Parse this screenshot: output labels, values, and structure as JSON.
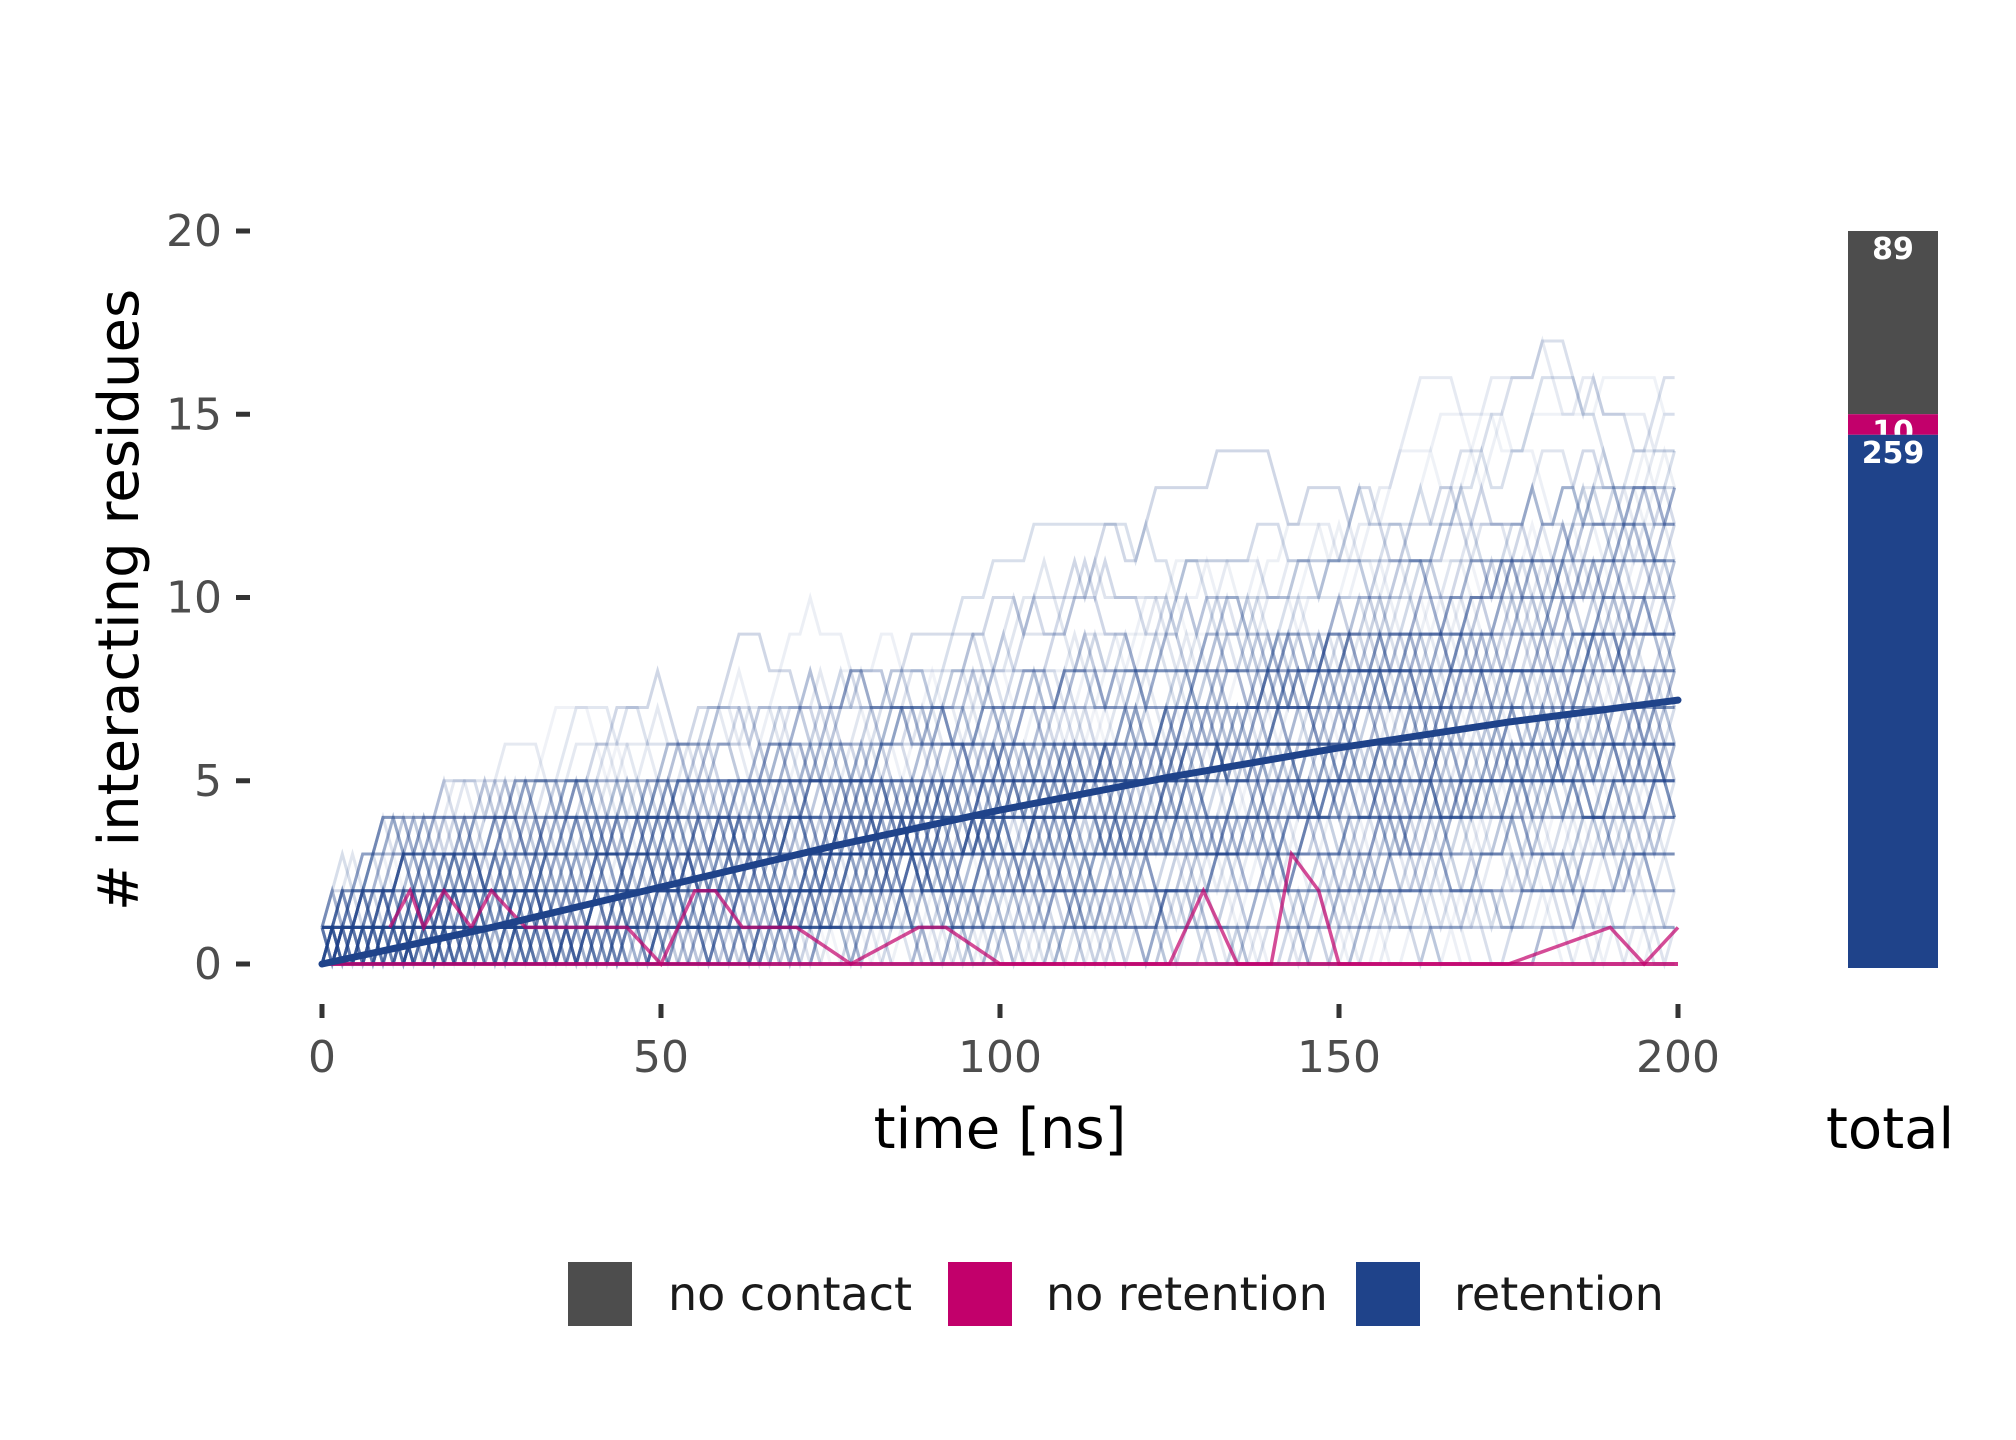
{
  "chart_data": [
    {
      "type": "line",
      "xlabel": "time [ns]",
      "ylabel": "# interacting residues",
      "xlim": [
        0,
        200
      ],
      "ylim": [
        0,
        20
      ],
      "x_ticks": [
        "0",
        "50",
        "100",
        "150",
        "200"
      ],
      "y_ticks": [
        "0",
        "5",
        "10",
        "15",
        "20"
      ],
      "grid": false,
      "series": [
        {
          "name": "retention",
          "color": "#1f438a",
          "style": "trend",
          "x": [
            0,
            25,
            50,
            75,
            100,
            125,
            150,
            175,
            200
          ],
          "y": [
            0,
            1.0,
            2.1,
            3.2,
            4.2,
            5.1,
            5.9,
            6.6,
            7.2
          ]
        },
        {
          "name": "no retention",
          "color": "#c2006b",
          "style": "trajectory",
          "x": [
            10,
            13,
            15,
            18,
            22,
            25,
            30,
            35,
            40,
            45,
            50,
            55,
            58,
            62,
            70,
            78,
            88,
            92,
            100,
            110,
            125,
            130,
            135,
            140,
            143,
            147,
            150,
            160,
            175,
            190,
            195,
            200
          ],
          "y": [
            1,
            2,
            1,
            2,
            1,
            2,
            1,
            1,
            1,
            1,
            0,
            2,
            2,
            1,
            1,
            0,
            1,
            1,
            0,
            0,
            0,
            2,
            0,
            0,
            3,
            2,
            0,
            0,
            0,
            1,
            0,
            1
          ]
        }
      ]
    },
    {
      "type": "bar",
      "categories": [
        "total"
      ],
      "xlabel": "total",
      "stacked": true,
      "series": [
        {
          "name": "no contact",
          "color": "#4d4d4d",
          "values": [
            89
          ],
          "label": "89"
        },
        {
          "name": "no retention",
          "color": "#c2006b",
          "values": [
            10
          ],
          "label": "10"
        },
        {
          "name": "retention",
          "color": "#1f438a",
          "values": [
            259
          ],
          "label": "259"
        }
      ]
    }
  ],
  "legend": {
    "position": "bottom",
    "items": [
      {
        "label": "no contact",
        "color": "#4d4d4d"
      },
      {
        "label": "no retention",
        "color": "#c2006b"
      },
      {
        "label": "retention",
        "color": "#1f438a"
      }
    ]
  }
}
